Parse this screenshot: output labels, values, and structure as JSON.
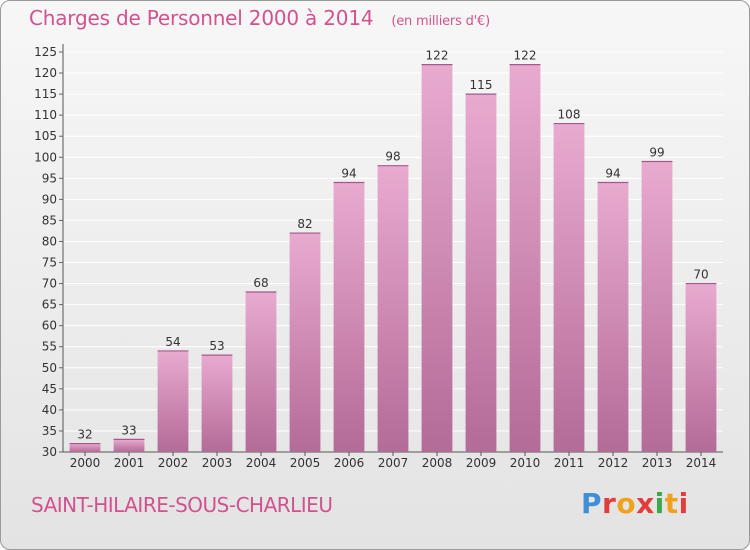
{
  "header": {
    "title": "Charges de Personnel 2000 à 2014",
    "unit": "(en milliers d'€)"
  },
  "footer": {
    "place": "SAINT-HILAIRE-SOUS-CHARLIEU",
    "logo_text": "Proxiti",
    "logo_colors": [
      "#3f8fd6",
      "#e23c3c",
      "#f0a21c",
      "#e23c3c",
      "#3ba94a",
      "#f0a21c",
      "#e23c3c"
    ]
  },
  "colors": {
    "title": "#d2528f",
    "bar_light": "#e9aad0",
    "bar_dark": "#b36b97",
    "grid": "#ffffff"
  },
  "chart_data": {
    "type": "bar",
    "title": "Charges de Personnel 2000 à 2014",
    "subtitle": "(en milliers d'€)",
    "categories": [
      "2000",
      "2001",
      "2002",
      "2003",
      "2004",
      "2005",
      "2006",
      "2007",
      "2008",
      "2009",
      "2010",
      "2011",
      "2012",
      "2013",
      "2014"
    ],
    "values": [
      32,
      33,
      54,
      53,
      68,
      82,
      94,
      98,
      122,
      115,
      122,
      108,
      94,
      99,
      70
    ],
    "ylim": [
      30,
      125
    ],
    "yticks": [
      30,
      35,
      40,
      45,
      50,
      55,
      60,
      65,
      70,
      75,
      80,
      85,
      90,
      95,
      100,
      105,
      110,
      115,
      120,
      125
    ],
    "grid": true,
    "data_labels": true
  }
}
